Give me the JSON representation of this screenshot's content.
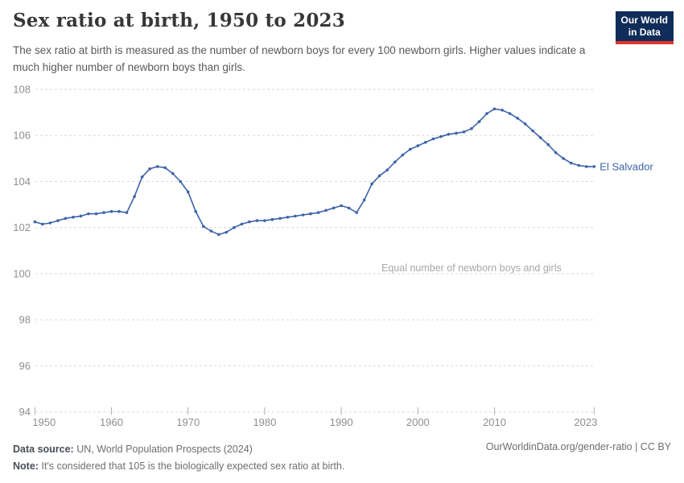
{
  "header": {
    "title": "Sex ratio at birth, 1950 to 2023",
    "subtitle": "The sex ratio at birth is measured as the number of newborn boys for every 100 newborn girls. Higher values indicate a much higher number of newborn boys than girls.",
    "logo": {
      "line1": "Our World",
      "line2": "in Data"
    }
  },
  "footer": {
    "source_label": "Data source:",
    "source_text": " UN, World Population Prospects (2024)",
    "note_label": "Note:",
    "note_text": " It's considered that 105 is the biologically expected sex ratio at birth.",
    "link_text": "OurWorldinData.org/gender-ratio | CC BY"
  },
  "colors": {
    "line": "#3d64a8",
    "entity_label": "#3d64a8",
    "gridline": "#dadada",
    "axis_label": "#8f8f8f",
    "tick_mark": "#b0b0b0",
    "annotation": "#a8a8a8",
    "logo_bg": "#102d59",
    "logo_stripe": "#e1352b"
  },
  "chart_data": {
    "type": "line",
    "title": "Sex ratio at birth, 1950 to 2023",
    "xlabel": "",
    "ylabel": "",
    "xlim": [
      1950,
      2023
    ],
    "ylim": [
      94,
      108
    ],
    "x_ticks": [
      1950,
      1960,
      1970,
      1980,
      1990,
      2000,
      2010,
      2023
    ],
    "y_ticks": [
      94,
      96,
      98,
      100,
      102,
      104,
      106,
      108
    ],
    "grid": "horizontal-dashed",
    "legend_position": "end-of-line-label",
    "annotation": {
      "text": "Equal number of newborn boys and girls",
      "at_value": 100
    },
    "series": [
      {
        "name": "El Salvador",
        "x": [
          1950,
          1951,
          1952,
          1953,
          1954,
          1955,
          1956,
          1957,
          1958,
          1959,
          1960,
          1961,
          1962,
          1963,
          1964,
          1965,
          1966,
          1967,
          1968,
          1969,
          1970,
          1971,
          1972,
          1973,
          1974,
          1975,
          1976,
          1977,
          1978,
          1979,
          1980,
          1981,
          1982,
          1983,
          1984,
          1985,
          1986,
          1987,
          1988,
          1989,
          1990,
          1991,
          1992,
          1993,
          1994,
          1995,
          1996,
          1997,
          1998,
          1999,
          2000,
          2001,
          2002,
          2003,
          2004,
          2005,
          2006,
          2007,
          2008,
          2009,
          2010,
          2011,
          2012,
          2013,
          2014,
          2015,
          2016,
          2017,
          2018,
          2019,
          2020,
          2021,
          2022,
          2023
        ],
        "values": [
          102.25,
          102.15,
          102.2,
          102.3,
          102.4,
          102.45,
          102.5,
          102.6,
          102.6,
          102.65,
          102.7,
          102.7,
          102.65,
          103.35,
          104.2,
          104.55,
          104.65,
          104.6,
          104.35,
          104.0,
          103.55,
          102.7,
          102.05,
          101.85,
          101.7,
          101.8,
          102.0,
          102.15,
          102.25,
          102.3,
          102.3,
          102.35,
          102.4,
          102.45,
          102.5,
          102.55,
          102.6,
          102.65,
          102.75,
          102.85,
          102.95,
          102.85,
          102.65,
          103.2,
          103.9,
          104.25,
          104.5,
          104.85,
          105.15,
          105.4,
          105.55,
          105.7,
          105.85,
          105.95,
          106.05,
          106.1,
          106.15,
          106.3,
          106.6,
          106.95,
          107.15,
          107.1,
          106.95,
          106.75,
          106.5,
          106.2,
          105.9,
          105.6,
          105.25,
          105.0,
          104.8,
          104.7,
          104.65,
          104.65
        ]
      }
    ]
  }
}
